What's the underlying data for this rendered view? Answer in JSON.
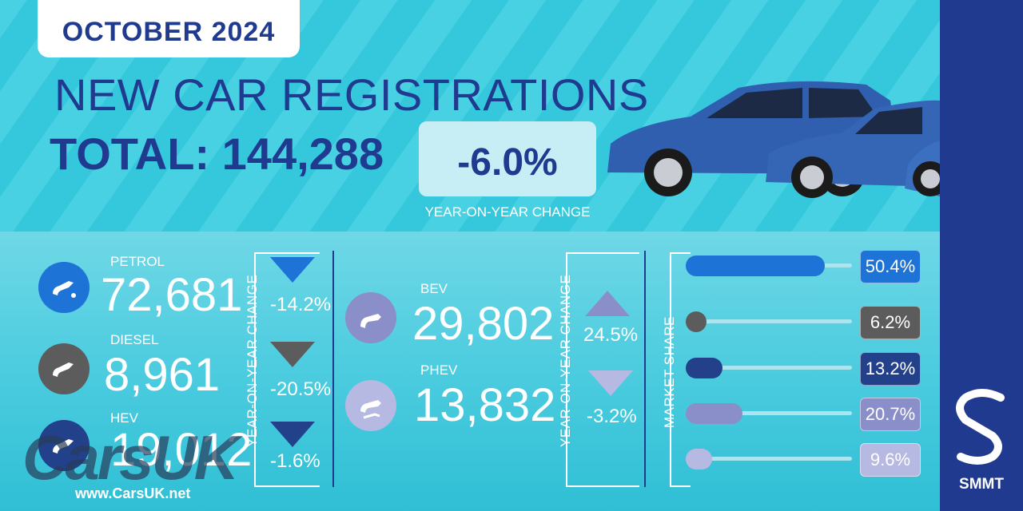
{
  "header": {
    "month": "OCTOBER 2024",
    "headline": "NEW CAR REGISTRATIONS",
    "total": "TOTAL: 144,288",
    "change": "-6.0%",
    "change_label": "YEAR-ON-YEAR CHANGE"
  },
  "fuels_left": [
    {
      "name": "PETROL",
      "value": "72,681",
      "yoy": "-14.2%",
      "direction": "down",
      "color": "#1d73d6",
      "icon": "fuel-pump-icon"
    },
    {
      "name": "DIESEL",
      "value": "8,961",
      "yoy": "-20.5%",
      "direction": "down",
      "color": "#5c5c5c",
      "icon": "fuel-pump-icon"
    },
    {
      "name": "HEV",
      "value": "19,012",
      "yoy": "-1.6%",
      "direction": "down",
      "color": "#23408a",
      "icon": "fuel-pump-icon"
    }
  ],
  "fuels_right": [
    {
      "name": "BEV",
      "value": "29,802",
      "yoy": "24.5%",
      "direction": "up",
      "color": "#8b8fc9",
      "icon": "ev-plug-icon"
    },
    {
      "name": "PHEV",
      "value": "13,832",
      "yoy": "-3.2%",
      "direction": "down",
      "color": "#b6b9e2",
      "icon": "plug-and-pump-icon"
    }
  ],
  "labels": {
    "yoy_left": "YEAR-ON-YEAR CHANGE",
    "yoy_right": "YEAR-ON-YEAR CHANGE",
    "market_share": "MARKET SHARE"
  },
  "market_share": [
    {
      "label": "50.4%",
      "value": 50.4,
      "color": "#1d73d6"
    },
    {
      "label": "6.2%",
      "value": 6.2,
      "color": "#5c5c5c"
    },
    {
      "label": "13.2%",
      "value": 13.2,
      "color": "#23408a"
    },
    {
      "label": "20.7%",
      "value": 20.7,
      "color": "#8b8fc9"
    },
    {
      "label": "9.6%",
      "value": 9.6,
      "color": "#b6b9e2"
    }
  ],
  "brand": {
    "name": "SMMT"
  },
  "watermark": {
    "logo": "CarsUK",
    "url": "www.CarsUK.net"
  }
}
